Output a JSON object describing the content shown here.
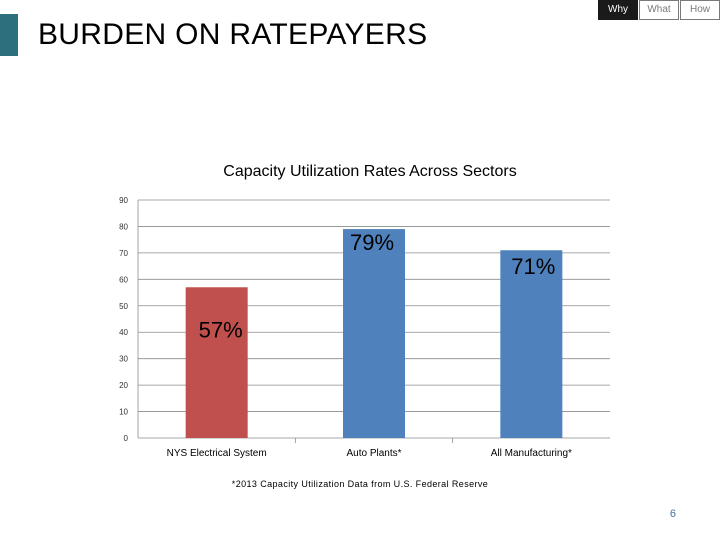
{
  "header": {
    "title": "BURDEN ON RATEPAYERS",
    "nav_tabs": [
      {
        "label": "Why",
        "active": true
      },
      {
        "label": "What",
        "active": false
      },
      {
        "label": "How",
        "active": false
      }
    ]
  },
  "chart_data": {
    "type": "bar",
    "title": "Capacity Utilization Rates Across Sectors",
    "categories": [
      "NYS Electrical System",
      "Auto Plants*",
      "All Manufacturing*"
    ],
    "values": [
      57,
      79,
      71
    ],
    "data_labels": [
      "57%",
      "79%",
      "71%"
    ],
    "colors": [
      "#c0504d",
      "#4f81bd",
      "#4f81bd"
    ],
    "ylim": [
      0,
      90
    ],
    "yticks": [
      0,
      10,
      20,
      30,
      40,
      50,
      60,
      70,
      80,
      90
    ],
    "grid": true,
    "xlabel": "",
    "ylabel": ""
  },
  "footnote": "*2013 Capacity Utilization Data from  U.S. Federal Reserve",
  "page_number": "6"
}
